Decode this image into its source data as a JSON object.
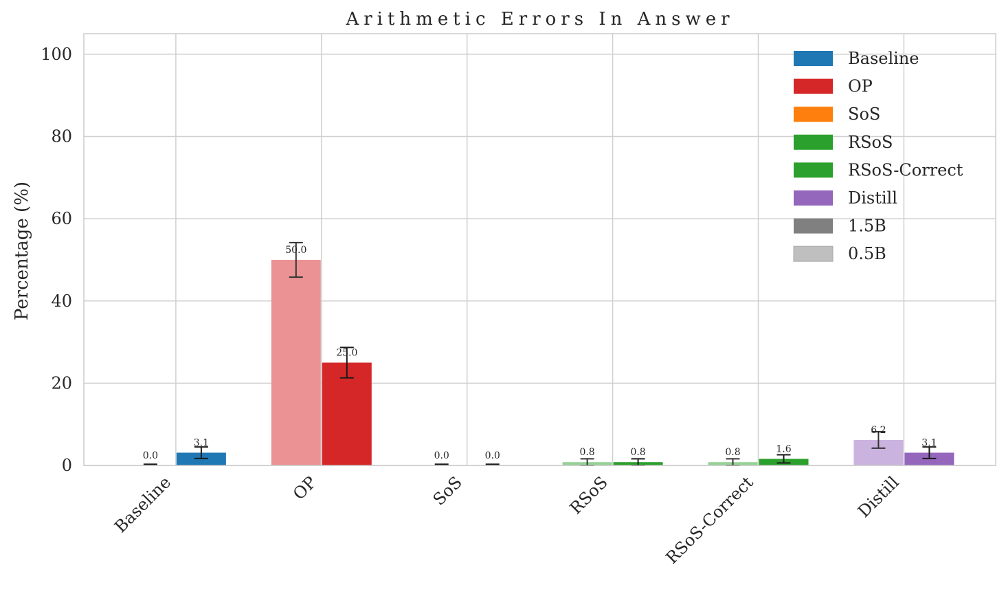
{
  "chart_data": {
    "type": "bar",
    "title": "Arithmetic Errors In Answer",
    "xlabel": "",
    "ylabel": "Percentage (%)",
    "ylim": [
      0,
      105
    ],
    "yticks": [
      "0",
      "20",
      "40",
      "60",
      "80",
      "100"
    ],
    "categories": [
      "Baseline",
      "OP",
      "SoS",
      "RSoS",
      "RSoS-Correct",
      "Distill"
    ],
    "colors": [
      "#1f77b4",
      "#d62728",
      "#ff7f0e",
      "#2ca02c",
      "#2ca02c",
      "#9467bd"
    ],
    "series": [
      {
        "name": "0.5B",
        "values": [
          0.0,
          50.0,
          0.0,
          0.8,
          0.8,
          6.2
        ],
        "errors": [
          0.0,
          4.2,
          0.0,
          0.8,
          0.8,
          2.0
        ],
        "labels": [
          "0.0",
          "50.0",
          "0.0",
          "0.8",
          "0.8",
          "6.2"
        ]
      },
      {
        "name": "1.5B",
        "values": [
          3.1,
          25.0,
          0.0,
          0.8,
          1.6,
          3.1
        ],
        "errors": [
          1.4,
          3.7,
          0.0,
          0.8,
          1.0,
          1.4
        ],
        "labels": [
          "3.1",
          "25.0",
          "0.0",
          "0.8",
          "1.6",
          "3.1"
        ]
      }
    ],
    "legend": {
      "placement": "top-right",
      "entries": [
        {
          "label": "Baseline",
          "color": "#1f77b4"
        },
        {
          "label": "OP",
          "color": "#d62728"
        },
        {
          "label": "SoS",
          "color": "#ff7f0e"
        },
        {
          "label": "RSoS",
          "color": "#2ca02c"
        },
        {
          "label": "RSoS-Correct",
          "color": "#2ca02c"
        },
        {
          "label": "Distill",
          "color": "#9467bd"
        },
        {
          "label": "1.5B",
          "color": "#808080"
        },
        {
          "label": "0.5B",
          "color": "#bfbfbf"
        }
      ]
    },
    "grid": true
  }
}
